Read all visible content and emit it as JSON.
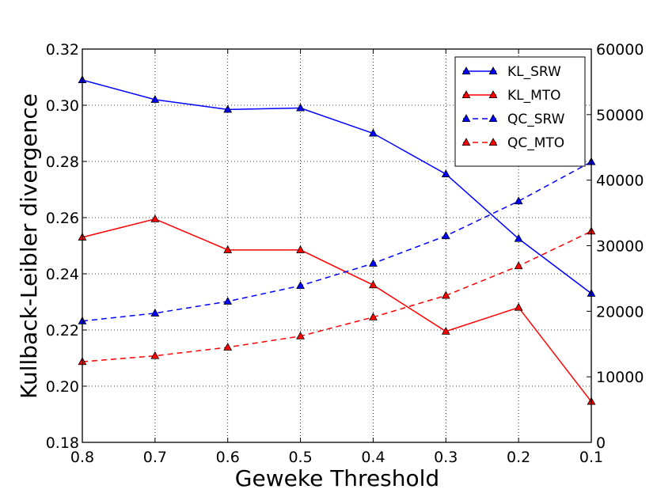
{
  "chart_data": {
    "type": "line",
    "title": "",
    "xlabel": "Geweke Threshold",
    "ylabel": "Kullback-Leibler divergence",
    "y2label": "",
    "x": [
      0.8,
      0.7,
      0.6,
      0.5,
      0.4,
      0.3,
      0.2,
      0.1
    ],
    "xlim": [
      0.8,
      0.1
    ],
    "xticks": [
      "0.8",
      "0.7",
      "0.6",
      "0.5",
      "0.4",
      "0.3",
      "0.2",
      "0.1"
    ],
    "ylim": [
      0.18,
      0.32
    ],
    "yticks": [
      "0.18",
      "0.20",
      "0.22",
      "0.24",
      "0.26",
      "0.28",
      "0.30",
      "0.32"
    ],
    "y2lim": [
      0,
      60000
    ],
    "y2ticks": [
      "0",
      "10000",
      "20000",
      "30000",
      "40000",
      "50000",
      "60000"
    ],
    "grid": true,
    "legend_position": "top-right",
    "series": [
      {
        "name": "KL_SRW",
        "axis": "left",
        "color": "#0000ff",
        "style": "solid",
        "marker": "triangle",
        "values": [
          0.309,
          0.302,
          0.2985,
          0.299,
          0.29,
          0.2755,
          0.2525,
          0.233
        ]
      },
      {
        "name": "KL_MTO",
        "axis": "left",
        "color": "#ff0000",
        "style": "solid",
        "marker": "triangle",
        "values": [
          0.253,
          0.2595,
          0.2485,
          0.2485,
          0.236,
          0.2195,
          0.228,
          0.1945
        ]
      },
      {
        "name": "QC_SRW",
        "axis": "right",
        "color": "#0000ff",
        "style": "dashed",
        "marker": "triangle",
        "values": [
          18500,
          19700,
          21500,
          23900,
          27300,
          31500,
          36800,
          42800
        ]
      },
      {
        "name": "QC_MTO",
        "axis": "right",
        "color": "#ff0000",
        "style": "dashed",
        "marker": "triangle",
        "values": [
          12300,
          13200,
          14500,
          16200,
          19100,
          22400,
          26900,
          32200
        ]
      }
    ]
  }
}
